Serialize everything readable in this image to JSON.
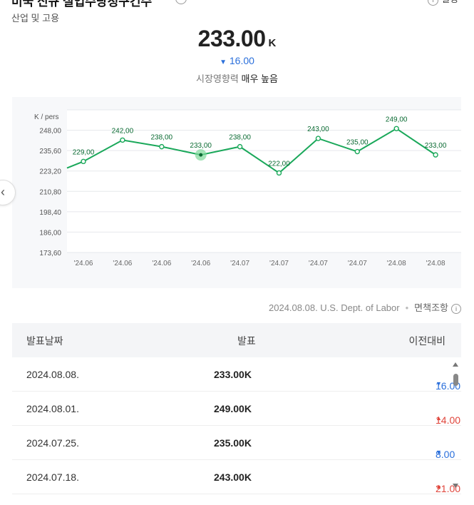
{
  "header": {
    "title": "미국 신규 실업수당청구건수",
    "subtitle": "산업 및 고용",
    "settings_label": "설정"
  },
  "summary": {
    "value": "233.00",
    "unit": "K",
    "change_text": "16.00",
    "impact_label": "시장영향력",
    "impact_value": "매우 높음"
  },
  "chart_data": {
    "type": "line",
    "ylabel": "K / pers",
    "yticks": [
      "248,00",
      "235,60",
      "223,20",
      "210,80",
      "198,40",
      "186,00",
      "173,60"
    ],
    "ylim": [
      173.6,
      260.4
    ],
    "x_ticks": [
      "'24.06",
      "'24.06",
      "'24.06",
      "'24.06",
      "'24.07",
      "'24.07",
      "'24.07",
      "'24.07",
      "'24.08",
      "'24.08"
    ],
    "lead_in_value": 225,
    "values": [
      229,
      242,
      238,
      233,
      238,
      222,
      243,
      235,
      249,
      233
    ],
    "labels": [
      "229,00",
      "242,00",
      "238,00",
      "233,00",
      "238,00",
      "222,00",
      "243,00",
      "235,00",
      "249,00",
      "233,00"
    ],
    "highlight_index": 3,
    "line_color": "#1aa85a"
  },
  "source": {
    "text": "2024.08.08. U.S. Dept. of Labor",
    "disclaimer": "면책조항"
  },
  "table": {
    "headers": [
      "발표날짜",
      "발표",
      "이전대비"
    ],
    "rows": [
      {
        "date": "2024.08.08.",
        "value": "233.00K",
        "change": "16.00",
        "dir": "down"
      },
      {
        "date": "2024.08.01.",
        "value": "249.00K",
        "change": "14.00",
        "dir": "up"
      },
      {
        "date": "2024.07.25.",
        "value": "235.00K",
        "change": "8.00",
        "dir": "down"
      },
      {
        "date": "2024.07.18.",
        "value": "243.00K",
        "change": "21.00",
        "dir": "up"
      }
    ]
  },
  "colors": {
    "down": "#2a6fdb",
    "up": "#e0463c"
  }
}
